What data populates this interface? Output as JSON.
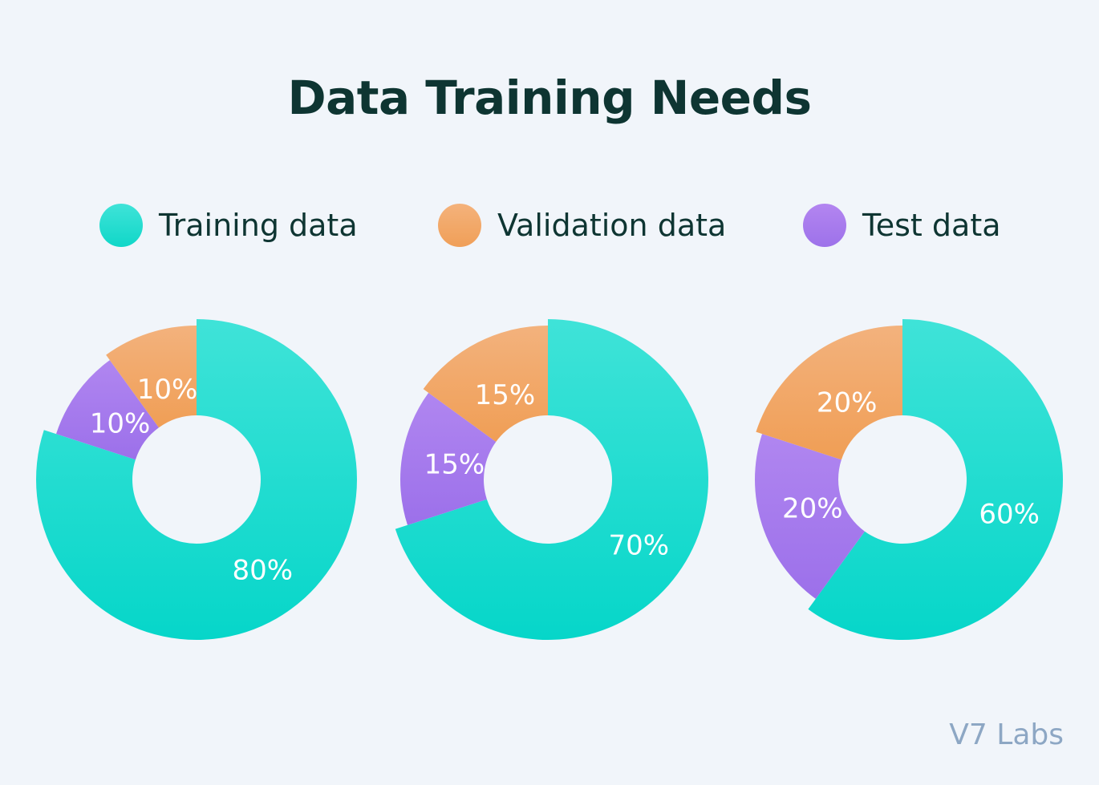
{
  "title": "Data Training Needs",
  "legend": [
    {
      "label": "Training data",
      "color": "#22dcd0"
    },
    {
      "label": "Validation data",
      "color": "#f2a867"
    },
    {
      "label": "Test data",
      "color": "#a97ced"
    }
  ],
  "chart_data": [
    {
      "type": "pie",
      "categories": [
        "Training data",
        "Validation data",
        "Test data"
      ],
      "values": [
        80,
        10,
        10
      ],
      "labels": [
        "80%",
        "10%",
        "10%"
      ]
    },
    {
      "type": "pie",
      "categories": [
        "Training data",
        "Validation data",
        "Test data"
      ],
      "values": [
        70,
        15,
        15
      ],
      "labels": [
        "70%",
        "15%",
        "15%"
      ]
    },
    {
      "type": "pie",
      "categories": [
        "Training data",
        "Validation data",
        "Test data"
      ],
      "values": [
        60,
        20,
        20
      ],
      "labels": [
        "60%",
        "20%",
        "20%"
      ]
    }
  ],
  "footer": "V7 Labs"
}
